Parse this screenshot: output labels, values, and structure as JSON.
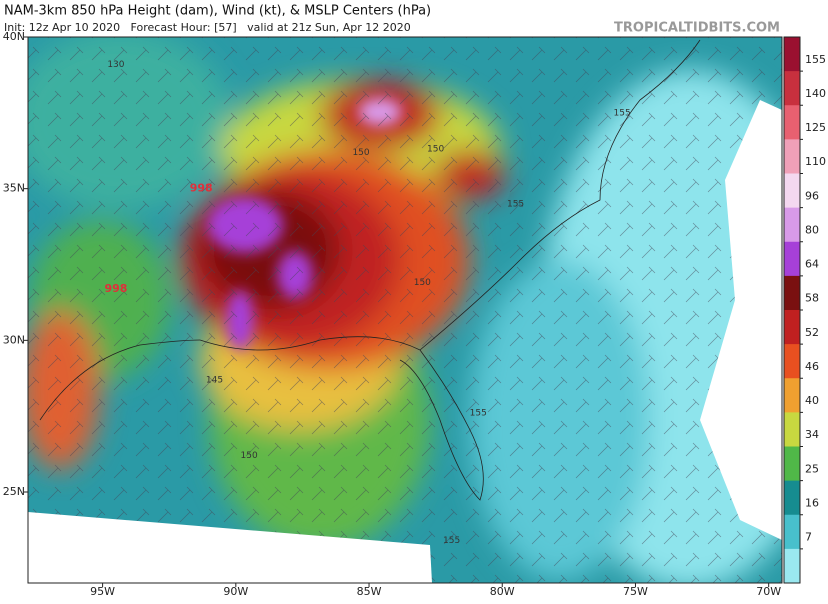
{
  "header": {
    "title": "NAM-3km 850 hPa Height (dam), Wind (kt), & MSLP Centers (hPa)",
    "subtitle": "Init: 12z Apr 10 2020   Forecast Hour: [57]   valid at 21z Sun, Apr 12 2020",
    "brand": "TROPICALTIDBITS.COM"
  },
  "map": {
    "xlim": [
      -97.8,
      -69.5
    ],
    "ylim": [
      22,
      40
    ],
    "xticks": [
      {
        "value": -95,
        "label": "95W"
      },
      {
        "value": -90,
        "label": "90W"
      },
      {
        "value": -85,
        "label": "85W"
      },
      {
        "value": -80,
        "label": "80W"
      },
      {
        "value": -75,
        "label": "75W"
      },
      {
        "value": -70,
        "label": "70W"
      }
    ],
    "yticks": [
      {
        "value": 40,
        "label": "40N"
      },
      {
        "value": 35,
        "label": "35N"
      },
      {
        "value": 30,
        "label": "30N"
      },
      {
        "value": 25,
        "label": "25N"
      }
    ],
    "height_labels": [
      {
        "text": "130",
        "lon": -94.5,
        "lat": 39.1
      },
      {
        "text": "150",
        "lon": -85.3,
        "lat": 36.2
      },
      {
        "text": "150",
        "lon": -82.5,
        "lat": 36.3
      },
      {
        "text": "155",
        "lon": -75.5,
        "lat": 37.5
      },
      {
        "text": "155",
        "lon": -79.5,
        "lat": 34.5
      },
      {
        "text": "150",
        "lon": -83.0,
        "lat": 31.9
      },
      {
        "text": "145",
        "lon": -90.8,
        "lat": 28.7
      },
      {
        "text": "150",
        "lon": -89.5,
        "lat": 26.2
      },
      {
        "text": "155",
        "lon": -80.9,
        "lat": 27.6
      },
      {
        "text": "155",
        "lon": -81.9,
        "lat": 23.4
      }
    ],
    "pressure_centers": [
      {
        "text": "998",
        "lon": -91.3,
        "lat": 35.0
      },
      {
        "text": "998",
        "lon": -94.5,
        "lat": 31.7
      }
    ]
  },
  "colorbar": {
    "ticks": [
      155,
      140,
      125,
      110,
      96,
      80,
      64,
      58,
      52,
      46,
      40,
      34,
      25,
      16,
      7
    ],
    "colors": [
      "#9a1030",
      "#c8303e",
      "#e86070",
      "#f0a0b8",
      "#f4d8f0",
      "#d89ae8",
      "#a640d8",
      "#7a1010",
      "#c02020",
      "#e85020",
      "#f0a030",
      "#c8d840",
      "#50b848",
      "#168c90",
      "#48c0cc",
      "#9ae8f0"
    ]
  }
}
